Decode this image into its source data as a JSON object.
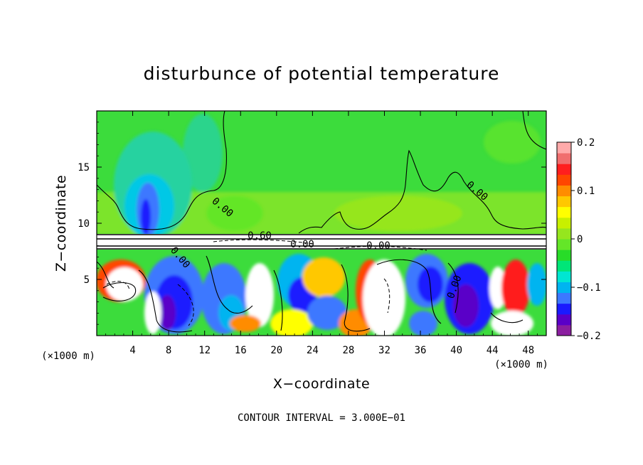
{
  "chart_data": {
    "type": "heatmap",
    "title": "disturbunce of potential temperature",
    "xlabel": "X−coordinate",
    "ylabel": "Z−coordinate",
    "x_unit": "(×1000 m)",
    "y_unit": "(×1000 m)",
    "xlim": [
      0,
      50
    ],
    "ylim": [
      0,
      20
    ],
    "x_ticks": [
      4,
      8,
      12,
      16,
      20,
      24,
      28,
      32,
      36,
      40,
      44,
      48
    ],
    "y_ticks": [
      5,
      10,
      15
    ],
    "colorbar": {
      "vmin": -0.2,
      "vmax": 0.2,
      "ticks": [
        "0.2",
        "0.1",
        "0",
        "−0.1",
        "−0.2"
      ],
      "colors": [
        "#8b1ea0",
        "#5a00c8",
        "#1a1aff",
        "#3c78ff",
        "#00b4f0",
        "#00e6d2",
        "#00e678",
        "#28dc28",
        "#64e628",
        "#96e61e",
        "#c8f000",
        "#ffff00",
        "#ffc800",
        "#ff8c00",
        "#ff4600",
        "#ff1e1e",
        "#f06e6e",
        "#ffaaaa"
      ]
    },
    "contour_labels": [
      "0.60",
      "0.00",
      "0.00",
      "0.00",
      "0.00",
      "0.00",
      "0.00"
    ],
    "contour_interval": "CONTOUR INTERVAL = 3.000E−01"
  }
}
